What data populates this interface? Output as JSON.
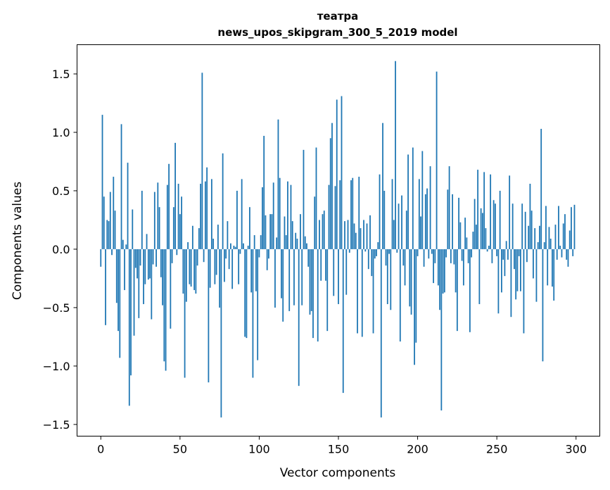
{
  "chart_data": {
    "type": "bar",
    "title": "театра",
    "subtitle": "news_upos_skipgram_300_5_2019 model",
    "xlabel": "Vector components",
    "ylabel": "Components values",
    "xlim": [
      -15,
      315
    ],
    "ylim": [
      -1.6,
      1.75
    ],
    "xticks": [
      0,
      50,
      100,
      150,
      200,
      250,
      300
    ],
    "xtick_labels": [
      "0",
      "50",
      "100",
      "150",
      "200",
      "250",
      "300"
    ],
    "yticks": [
      -1.5,
      -1.0,
      -0.5,
      0.0,
      0.5,
      1.0,
      1.5
    ],
    "ytick_labels": [
      "−1.5",
      "−1.0",
      "−0.5",
      "0.0",
      "0.5",
      "1.0",
      "1.5"
    ],
    "grid": false,
    "bar_color": "#1f77b4",
    "x": [
      0,
      1,
      2,
      3,
      4,
      5,
      6,
      7,
      8,
      9,
      10,
      11,
      12,
      13,
      14,
      15,
      16,
      17,
      18,
      19,
      20,
      21,
      22,
      23,
      24,
      25,
      26,
      27,
      28,
      29,
      30,
      31,
      32,
      33,
      34,
      35,
      36,
      37,
      38,
      39,
      40,
      41,
      42,
      43,
      44,
      45,
      46,
      47,
      48,
      49,
      50,
      51,
      52,
      53,
      54,
      55,
      56,
      57,
      58,
      59,
      60,
      61,
      62,
      63,
      64,
      65,
      66,
      67,
      68,
      69,
      70,
      71,
      72,
      73,
      74,
      75,
      76,
      77,
      78,
      79,
      80,
      81,
      82,
      83,
      84,
      85,
      86,
      87,
      88,
      89,
      90,
      91,
      92,
      93,
      94,
      95,
      96,
      97,
      98,
      99,
      100,
      101,
      102,
      103,
      104,
      105,
      106,
      107,
      108,
      109,
      110,
      111,
      112,
      113,
      114,
      115,
      116,
      117,
      118,
      119,
      120,
      121,
      122,
      123,
      124,
      125,
      126,
      127,
      128,
      129,
      130,
      131,
      132,
      133,
      134,
      135,
      136,
      137,
      138,
      139,
      140,
      141,
      142,
      143,
      144,
      145,
      146,
      147,
      148,
      149,
      150,
      151,
      152,
      153,
      154,
      155,
      156,
      157,
      158,
      159,
      160,
      161,
      162,
      163,
      164,
      165,
      166,
      167,
      168,
      169,
      170,
      171,
      172,
      173,
      174,
      175,
      176,
      177,
      178,
      179,
      180,
      181,
      182,
      183,
      184,
      185,
      186,
      187,
      188,
      189,
      190,
      191,
      192,
      193,
      194,
      195,
      196,
      197,
      198,
      199,
      200,
      201,
      202,
      203,
      204,
      205,
      206,
      207,
      208,
      209,
      210,
      211,
      212,
      213,
      214,
      215,
      216,
      217,
      218,
      219,
      220,
      221,
      222,
      223,
      224,
      225,
      226,
      227,
      228,
      229,
      230,
      231,
      232,
      233,
      234,
      235,
      236,
      237,
      238,
      239,
      240,
      241,
      242,
      243,
      244,
      245,
      246,
      247,
      248,
      249,
      250,
      251,
      252,
      253,
      254,
      255,
      256,
      257,
      258,
      259,
      260,
      261,
      262,
      263,
      264,
      265,
      266,
      267,
      268,
      269,
      270,
      271,
      272,
      273,
      274,
      275,
      276,
      277,
      278,
      279,
      280,
      281,
      282,
      283,
      284,
      285,
      286,
      287,
      288,
      289,
      290,
      291,
      292,
      293,
      294,
      295,
      296,
      297,
      298,
      299
    ],
    "values": [
      -0.15,
      1.15,
      0.45,
      -0.65,
      0.25,
      0.24,
      0.49,
      -0.05,
      0.62,
      0.33,
      -0.46,
      -0.7,
      -0.93,
      1.07,
      0.08,
      -0.35,
      0.04,
      0.74,
      -1.34,
      -1.08,
      0.34,
      -0.74,
      -0.16,
      -0.25,
      -0.59,
      -0.14,
      0.5,
      -0.47,
      -0.3,
      0.13,
      -0.26,
      -0.25,
      -0.6,
      -0.13,
      0.49,
      -0.15,
      0.57,
      0.36,
      -0.24,
      -0.48,
      -0.96,
      -1.04,
      0.55,
      0.73,
      -0.68,
      -0.12,
      0.36,
      0.91,
      -0.05,
      0.56,
      0.3,
      0.45,
      -0.38,
      -1.1,
      -0.45,
      0.06,
      -0.3,
      -0.32,
      0.2,
      -0.35,
      -0.38,
      -0.14,
      0.18,
      0.56,
      1.51,
      -0.11,
      0.58,
      0.7,
      -1.14,
      -0.33,
      0.6,
      0.09,
      -0.3,
      -0.22,
      0.21,
      -0.5,
      -1.44,
      0.82,
      -0.28,
      -0.08,
      0.24,
      -0.17,
      0.05,
      -0.34,
      0.03,
      0.02,
      0.5,
      -0.3,
      -0.04,
      0.6,
      0.05,
      -0.75,
      -0.76,
      0.03,
      0.36,
      -0.37,
      -1.1,
      0.12,
      -0.36,
      -0.95,
      -0.07,
      0.12,
      0.53,
      0.97,
      0.29,
      -0.18,
      -0.08,
      0.3,
      0.3,
      0.57,
      -0.5,
      0.1,
      1.11,
      0.61,
      -0.42,
      -0.62,
      0.28,
      0.12,
      0.58,
      -0.53,
      0.55,
      0.24,
      -0.48,
      0.14,
      0.09,
      -1.17,
      0.3,
      -0.48,
      0.85,
      0.11,
      0.05,
      -0.15,
      -0.56,
      -0.53,
      -0.76,
      0.45,
      0.87,
      -0.79,
      0.25,
      -0.27,
      0.3,
      0.33,
      -0.27,
      -0.7,
      0.55,
      0.95,
      1.08,
      -0.4,
      0.54,
      1.28,
      -0.47,
      0.59,
      1.31,
      -1.23,
      0.24,
      -0.39,
      0.25,
      -0.03,
      0.59,
      0.61,
      0.22,
      0.14,
      -0.72,
      0.62,
      0.18,
      -0.75,
      0.25,
      -0.02,
      0.22,
      -0.17,
      0.29,
      -0.23,
      -0.72,
      -0.08,
      -0.06,
      0.06,
      0.64,
      -1.44,
      1.08,
      0.5,
      -0.14,
      -0.47,
      -0.04,
      -0.52,
      0.6,
      0.25,
      1.61,
      -0.03,
      0.39,
      -0.79,
      0.46,
      -0.14,
      -0.31,
      0.33,
      0.81,
      -0.49,
      -0.56,
      0.87,
      -0.99,
      -0.8,
      -0.06,
      0.6,
      0.28,
      0.84,
      -0.15,
      0.47,
      0.52,
      -0.08,
      0.71,
      -0.04,
      -0.29,
      -0.12,
      1.52,
      -0.31,
      -0.52,
      -1.38,
      -0.38,
      -0.37,
      -0.07,
      0.51,
      0.71,
      -0.12,
      0.47,
      -0.13,
      -0.37,
      -0.7,
      0.44,
      0.23,
      -0.1,
      -0.31,
      0.27,
      0.1,
      -0.12,
      -0.71,
      -0.07,
      0.15,
      0.43,
      0.21,
      0.68,
      -0.47,
      0.35,
      0.31,
      0.66,
      0.18,
      -0.02,
      0.03,
      0.64,
      -0.12,
      0.42,
      0.39,
      -0.06,
      -0.55,
      0.5,
      -0.37,
      -0.09,
      -0.23,
      0.07,
      -0.09,
      0.63,
      -0.58,
      0.39,
      -0.17,
      -0.43,
      -0.36,
      -0.06,
      -0.36,
      0.39,
      -0.72,
      0.32,
      -0.11,
      0.2,
      0.56,
      0.33,
      -0.25,
      0.18,
      -0.45,
      0.06,
      0.2,
      1.03,
      -0.96,
      0.06,
      0.37,
      -0.31,
      0.19,
      0.09,
      -0.32,
      -0.44,
      0.21,
      -0.09,
      0.37,
      0.03,
      -0.07,
      0.22,
      0.3,
      -0.09,
      -0.15,
      0.16,
      0.36,
      -0.06,
      0.38
    ]
  }
}
